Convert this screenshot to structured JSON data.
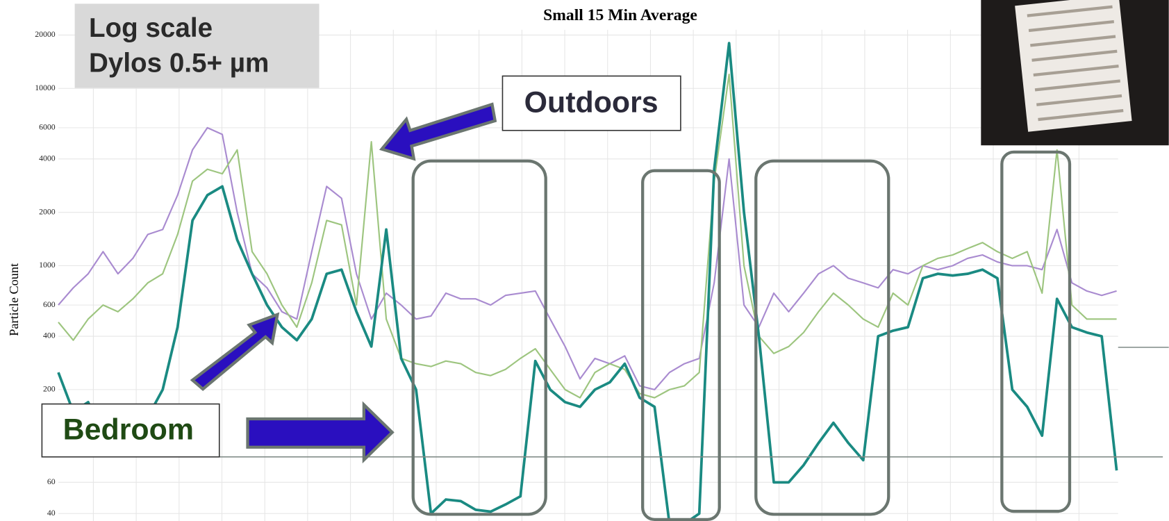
{
  "chart_data": {
    "type": "line",
    "title": "Small 15 Min Average",
    "ylabel": "Particle Count",
    "log_scale": true,
    "grid": true,
    "annotations": [
      "Log scale",
      "Dylos 0.5+ µm",
      "Outdoors",
      "Bedroom"
    ],
    "categories": [
      null,
      null,
      null,
      null,
      null,
      null,
      null,
      null,
      null,
      null,
      null,
      null,
      null,
      null,
      null,
      null,
      null,
      null,
      null,
      null,
      null,
      null,
      null,
      null,
      null,
      null,
      null,
      null,
      null,
      null,
      null,
      null,
      null,
      null,
      null,
      null,
      null,
      null,
      null,
      null,
      null,
      null,
      null,
      null,
      null,
      null,
      null,
      null,
      null,
      null,
      null,
      null,
      null,
      null,
      null,
      null,
      null,
      null,
      null,
      null,
      null,
      null,
      null,
      null,
      null,
      null,
      null,
      null,
      null,
      null,
      null,
      null
    ],
    "ylim": [
      40,
      20000
    ],
    "yticks": [
      40,
      60,
      200,
      400,
      600,
      1000,
      2000,
      4000,
      6000,
      10000,
      20000
    ],
    "series": [
      {
        "color": "#a98bd0",
        "values": [
          600,
          750,
          900,
          1200,
          900,
          1100,
          1500,
          1600,
          2500,
          4500,
          6000,
          5500,
          2000,
          900,
          750,
          550,
          500,
          1200,
          2800,
          2400,
          900,
          500,
          700,
          600,
          500,
          520,
          700,
          650,
          650,
          600,
          680,
          700,
          720,
          500,
          350,
          230,
          300,
          280,
          310,
          210,
          200,
          250,
          280,
          300,
          800,
          4000,
          600,
          450,
          700,
          550,
          700,
          900,
          1000,
          850,
          800,
          750,
          950,
          900,
          1000,
          950,
          1000,
          1100,
          1150,
          1050,
          1000,
          1000,
          950,
          1600,
          800,
          720,
          680,
          720
        ]
      },
      {
        "color": "#9dc57f",
        "values": [
          480,
          380,
          500,
          600,
          550,
          650,
          800,
          900,
          1500,
          3000,
          3500,
          3300,
          4500,
          1200,
          900,
          600,
          450,
          800,
          1800,
          1700,
          600,
          5000,
          500,
          300,
          280,
          270,
          290,
          280,
          250,
          240,
          260,
          300,
          340,
          260,
          200,
          180,
          250,
          280,
          260,
          190,
          180,
          200,
          210,
          250,
          3000,
          12000,
          1000,
          400,
          320,
          350,
          420,
          550,
          700,
          600,
          500,
          450,
          700,
          600,
          1000,
          1100,
          1150,
          1250,
          1350,
          1200,
          1100,
          1200,
          700,
          4500,
          600,
          500,
          500,
          500
        ]
      },
      {
        "color": "#1a8a82",
        "values": [
          250,
          150,
          170,
          110,
          100,
          100,
          140,
          200,
          450,
          1800,
          2500,
          2800,
          1400,
          900,
          600,
          450,
          380,
          500,
          900,
          950,
          550,
          350,
          1600,
          300,
          200,
          40,
          48,
          47,
          42,
          41,
          45,
          50,
          290,
          200,
          170,
          160,
          200,
          220,
          280,
          180,
          160,
          35,
          35,
          40,
          3500,
          18000,
          2000,
          400,
          60,
          60,
          75,
          100,
          130,
          100,
          80,
          400,
          430,
          450,
          850,
          900,
          880,
          900,
          950,
          850,
          200,
          160,
          110,
          650,
          450,
          420,
          400,
          70
        ]
      }
    ]
  }
}
